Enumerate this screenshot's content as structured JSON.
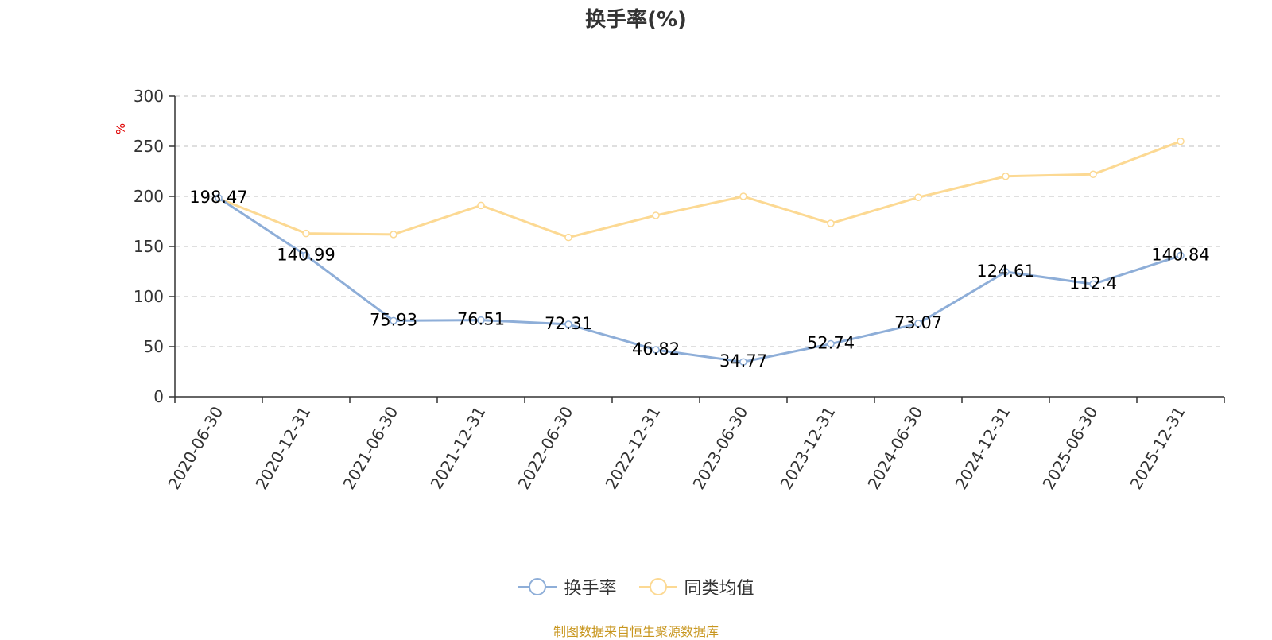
{
  "chart_data": {
    "type": "line",
    "title": "换手率(%)",
    "ylabel": "%",
    "ylim": [
      0,
      300
    ],
    "yticks": [
      0,
      50,
      100,
      150,
      200,
      250,
      300
    ],
    "categories": [
      "2020-06-30",
      "2020-12-31",
      "2021-06-30",
      "2021-12-31",
      "2022-06-30",
      "2022-12-31",
      "2023-06-30",
      "2023-12-31",
      "2024-06-30",
      "2024-12-31",
      "2025-06-30",
      "2025-12-31"
    ],
    "series": [
      {
        "name": "换手率",
        "color": "#8eaed8",
        "values": [
          198.47,
          140.99,
          75.93,
          76.51,
          72.31,
          46.82,
          34.77,
          52.74,
          73.07,
          124.61,
          112.4,
          140.84
        ],
        "labels": [
          "198.47",
          "140.99",
          "75.93",
          "76.51",
          "72.31",
          "46.82",
          "34.77",
          "52.74",
          "73.07",
          "124.61",
          "112.4",
          "140.84"
        ]
      },
      {
        "name": "同类均值",
        "color": "#fcd993",
        "values": [
          198,
          163,
          162,
          191,
          159,
          181,
          200,
          173,
          199,
          220,
          222,
          255
        ]
      }
    ],
    "grid": true,
    "legend_position": "bottom-center",
    "unit_color": "#e00000",
    "source_color": "#c8961e"
  },
  "source_note": "制图数据来自恒生聚源数据库"
}
